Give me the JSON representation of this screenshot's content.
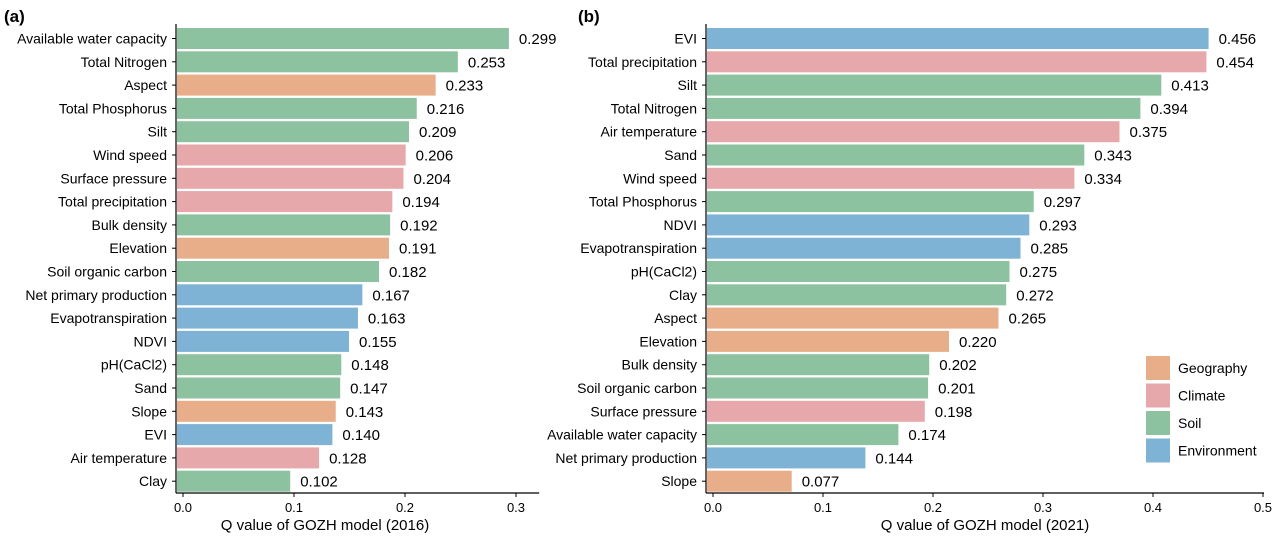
{
  "colors": {
    "Geography": "#E8AE89",
    "Climate": "#E6A8AA",
    "Soil": "#8CC29F",
    "Environment": "#7EB3D5"
  },
  "legend": [
    "Geography",
    "Climate",
    "Soil",
    "Environment"
  ],
  "chart_data": [
    {
      "type": "bar",
      "panel_label": "(a)",
      "xlabel": "Q value of GOZH model (2016)",
      "ylabel": "",
      "xlim": [
        0,
        0.32
      ],
      "xticks": [
        "0.0",
        "0.1",
        "0.2",
        "0.3"
      ],
      "xtick_values": [
        0,
        0.1,
        0.2,
        0.3
      ],
      "categories": [
        "Available water capacity",
        "Total Nitrogen",
        "Aspect",
        "Total Phosphorus",
        "Silt",
        "Wind speed",
        "Surface pressure",
        "Total precipitation",
        "Bulk density",
        "Elevation",
        "Soil organic carbon",
        "Net primary production",
        "Evapotranspiration",
        "NDVI",
        "pH(CaCl2)",
        "Sand",
        "Slope",
        "EVI",
        "Air temperature",
        "Clay"
      ],
      "values": [
        0.299,
        0.253,
        0.233,
        0.216,
        0.209,
        0.206,
        0.204,
        0.194,
        0.192,
        0.191,
        0.182,
        0.167,
        0.163,
        0.155,
        0.148,
        0.147,
        0.143,
        0.14,
        0.128,
        0.102
      ],
      "value_labels": [
        "0.299",
        "0.253",
        "0.233",
        "0.216",
        "0.209",
        "0.206",
        "0.204",
        "0.194",
        "0.192",
        "0.191",
        "0.182",
        "0.167",
        "0.163",
        "0.155",
        "0.148",
        "0.147",
        "0.143",
        "0.140",
        "0.128",
        "0.102"
      ],
      "groups": [
        "Soil",
        "Soil",
        "Geography",
        "Soil",
        "Soil",
        "Climate",
        "Climate",
        "Climate",
        "Soil",
        "Geography",
        "Soil",
        "Environment",
        "Environment",
        "Environment",
        "Soil",
        "Soil",
        "Geography",
        "Environment",
        "Climate",
        "Soil"
      ]
    },
    {
      "type": "bar",
      "panel_label": "(b)",
      "xlabel": "Q value of GOZH model (2021)",
      "ylabel": "",
      "xlim": [
        0,
        0.5
      ],
      "xticks": [
        "0.0",
        "0.1",
        "0.2",
        "0.3",
        "0.4",
        "0.5"
      ],
      "xtick_values": [
        0,
        0.1,
        0.2,
        0.3,
        0.4,
        0.5
      ],
      "categories": [
        "EVI",
        "Total precipitation",
        "Silt",
        "Total Nitrogen",
        "Air temperature",
        "Sand",
        "Wind speed",
        "Total Phosphorus",
        "NDVI",
        "Evapotranspiration",
        "pH(CaCl2)",
        "Clay",
        "Aspect",
        "Elevation",
        "Bulk density",
        "Soil organic carbon",
        "Surface pressure",
        "Available water capacity",
        "Net primary production",
        "Slope"
      ],
      "values": [
        0.456,
        0.454,
        0.413,
        0.394,
        0.375,
        0.343,
        0.334,
        0.297,
        0.293,
        0.285,
        0.275,
        0.272,
        0.265,
        0.22,
        0.202,
        0.201,
        0.198,
        0.174,
        0.144,
        0.077
      ],
      "value_labels": [
        "0.456",
        "0.454",
        "0.413",
        "0.394",
        "0.375",
        "0.343",
        "0.334",
        "0.297",
        "0.293",
        "0.285",
        "0.275",
        "0.272",
        "0.265",
        "0.220",
        "0.202",
        "0.201",
        "0.198",
        "0.174",
        "0.144",
        "0.077"
      ],
      "groups": [
        "Environment",
        "Climate",
        "Soil",
        "Soil",
        "Climate",
        "Soil",
        "Climate",
        "Soil",
        "Environment",
        "Environment",
        "Soil",
        "Soil",
        "Geography",
        "Geography",
        "Soil",
        "Soil",
        "Climate",
        "Soil",
        "Environment",
        "Geography"
      ]
    }
  ]
}
